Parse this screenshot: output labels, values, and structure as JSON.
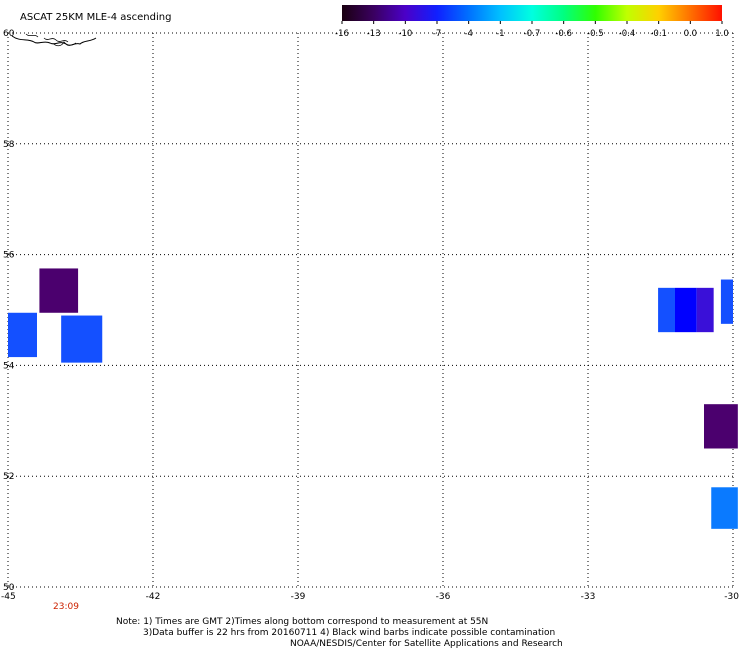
{
  "chart_data": {
    "type": "heatmap",
    "title": "ASCAT 25KM MLE-4 ascending",
    "x_ticks": [
      "-45",
      "-42",
      "-39",
      "-36",
      "-33",
      "-30"
    ],
    "y_ticks": [
      "50",
      "52",
      "54",
      "56",
      "58",
      "60"
    ],
    "xlim": [
      -45,
      -30
    ],
    "ylim": [
      50,
      60
    ],
    "grid": true,
    "colorbar": {
      "labels": [
        "-16",
        "-13",
        "-10",
        "-7",
        "-4",
        "-1",
        "-0.7",
        "-0.6",
        "-0.5",
        "-0.4",
        "-0.1",
        "0.0",
        "1.0"
      ],
      "colors": [
        "#1a0010",
        "#3a0060",
        "#4b00c8",
        "#1020ff",
        "#0070ff",
        "#00c0ff",
        "#00ffe0",
        "#00ff80",
        "#30ff00",
        "#c0ff00",
        "#ffd000",
        "#ff7000",
        "#ff1000"
      ]
    },
    "cells": [
      {
        "lon0": -44.35,
        "lon1": -43.55,
        "lat0": 54.95,
        "lat1": 55.75,
        "value": -13,
        "color": "#4b006e"
      },
      {
        "lon0": -45.0,
        "lon1": -44.4,
        "lat0": 54.15,
        "lat1": 54.95,
        "value": -7,
        "color": "#1450ff"
      },
      {
        "lon0": -43.9,
        "lon1": -43.05,
        "lat0": 54.05,
        "lat1": 54.9,
        "value": -7,
        "color": "#1450ff"
      },
      {
        "lon0": -31.55,
        "lon1": -31.2,
        "lat0": 54.6,
        "lat1": 55.4,
        "value": -7,
        "color": "#1450ff"
      },
      {
        "lon0": -31.2,
        "lon1": -30.75,
        "lat0": 54.6,
        "lat1": 55.4,
        "value": -10,
        "color": "#0000ff"
      },
      {
        "lon0": -30.75,
        "lon1": -30.4,
        "lat0": 54.6,
        "lat1": 55.4,
        "value": -10,
        "color": "#3a10d8"
      },
      {
        "lon0": -30.25,
        "lon1": -30.0,
        "lat0": 54.75,
        "lat1": 55.55,
        "value": -7,
        "color": "#1450ff"
      },
      {
        "lon0": -30.6,
        "lon1": -29.9,
        "lat0": 52.5,
        "lat1": 53.3,
        "value": -13,
        "color": "#4b006e"
      },
      {
        "lon0": -30.45,
        "lon1": -29.9,
        "lat0": 51.05,
        "lat1": 51.8,
        "value": -4,
        "color": "#0a7aff"
      }
    ],
    "time_labels": [
      {
        "text": "23:09",
        "lon": -43.8
      }
    ],
    "notes": [
      "Note: 1) Times are GMT 2)Times along bottom correspond to measurement at 55N",
      "3)Data buffer is 22 hrs from 20160711 4) Black wind barbs indicate possible contamination",
      "NOAA/NESDIS/Center for Satellite Applications and Research"
    ]
  }
}
